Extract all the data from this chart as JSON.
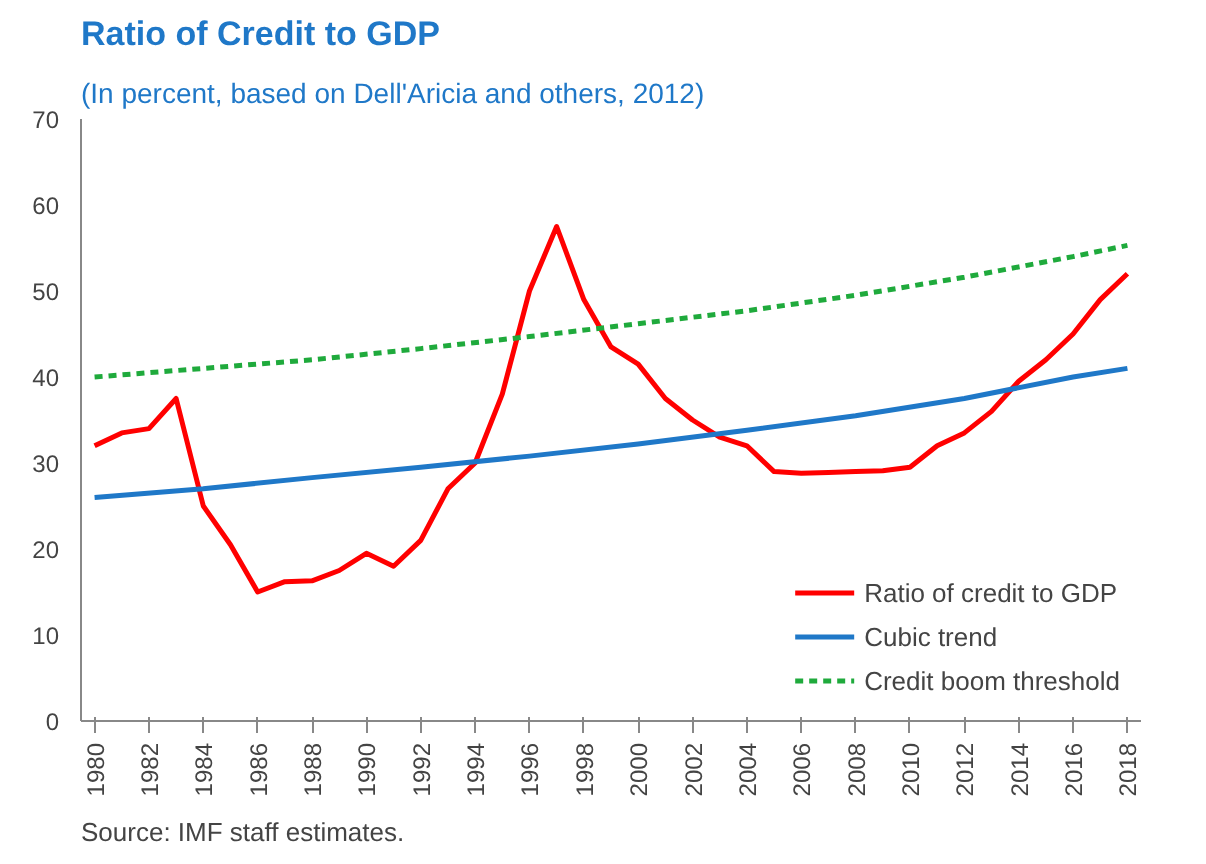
{
  "chart_data": {
    "type": "line",
    "title": "Ratio of Credit to GDP",
    "subtitle": "(In percent, based on Dell'Aricia and others, 2012)",
    "annotations": [
      "Source: IMF staff estimates."
    ],
    "x": [
      1980,
      1981,
      1982,
      1983,
      1984,
      1985,
      1986,
      1987,
      1988,
      1989,
      1990,
      1991,
      1992,
      1993,
      1994,
      1995,
      1996,
      1997,
      1998,
      1999,
      2000,
      2001,
      2002,
      2003,
      2004,
      2005,
      2006,
      2007,
      2008,
      2009,
      2010,
      2011,
      2012,
      2013,
      2014,
      2015,
      2016,
      2017,
      2018
    ],
    "series": [
      {
        "name": "Ratio of credit to GDP",
        "color": "#ff0000",
        "line_style": "solid",
        "values": [
          32,
          33.5,
          34,
          37.5,
          25,
          20.5,
          15,
          16.2,
          16.3,
          17.5,
          19.5,
          18,
          21,
          27,
          30,
          38,
          50,
          57.5,
          49,
          43.5,
          41.5,
          37.5,
          35,
          33,
          32,
          29,
          28.8,
          28.9,
          29,
          29.1,
          29.5,
          32,
          33.5,
          36,
          39.5,
          42,
          45,
          49,
          52
        ]
      },
      {
        "name": "Cubic trend",
        "color": "#1f78c8",
        "line_style": "solid",
        "x": [
          1980,
          1984,
          1988,
          1992,
          1996,
          2000,
          2004,
          2008,
          2012,
          2016,
          2018
        ],
        "values": [
          26,
          27,
          28.3,
          29.5,
          30.8,
          32.2,
          33.8,
          35.5,
          37.5,
          40,
          41
        ]
      },
      {
        "name": "Credit boom threshold",
        "color": "#1faa3c",
        "line_style": "dashed",
        "x": [
          1980,
          1984,
          1988,
          1992,
          1996,
          2000,
          2004,
          2008,
          2012,
          2016,
          2018
        ],
        "values": [
          40,
          41,
          42,
          43.3,
          44.7,
          46.2,
          47.7,
          49.5,
          51.6,
          54,
          55.3
        ]
      }
    ],
    "xlim": [
      1979.5,
      2018.5
    ],
    "xticks": [
      1980,
      1982,
      1984,
      1986,
      1988,
      1990,
      1992,
      1994,
      1996,
      1998,
      2000,
      2002,
      2004,
      2006,
      2008,
      2010,
      2012,
      2014,
      2016,
      2018
    ],
    "ylim": [
      0,
      70
    ],
    "yticks": [
      0,
      10,
      20,
      30,
      40,
      50,
      60,
      70
    ],
    "grid": false,
    "legend": "bottom right"
  }
}
